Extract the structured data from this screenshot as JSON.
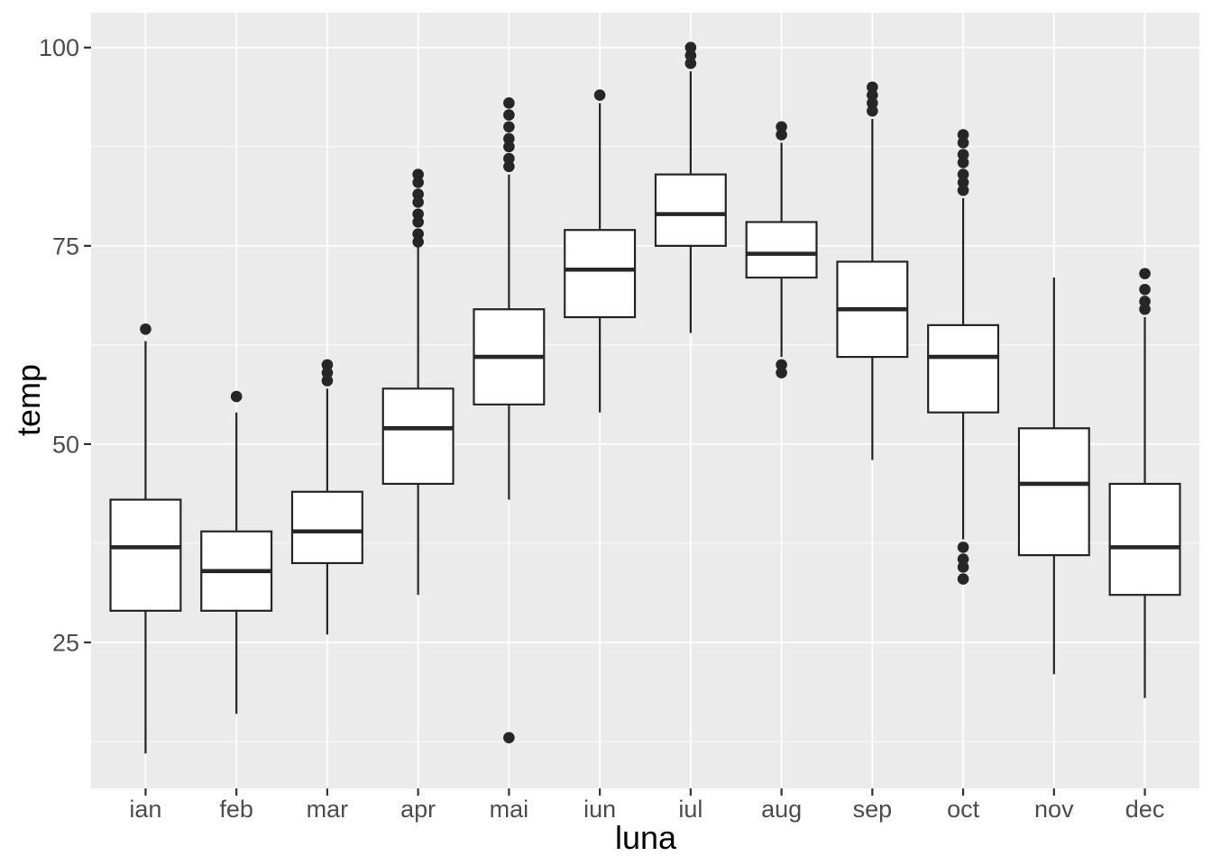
{
  "chart_data": {
    "type": "boxplot",
    "title": "",
    "xlabel": "luna",
    "ylabel": "temp",
    "x_categories": [
      "ian",
      "feb",
      "mar",
      "apr",
      "mai",
      "iun",
      "iul",
      "aug",
      "sep",
      "oct",
      "nov",
      "dec"
    ],
    "y_ticks": [
      25,
      50,
      75,
      100
    ],
    "y_minor_gridlines": [
      12.5,
      37.5,
      62.5,
      87.5
    ],
    "ylim": [
      6.6,
      104.4
    ],
    "grid": "on",
    "legend": "none",
    "boxes": [
      {
        "month": "ian",
        "whisker_low": 11,
        "q1": 29,
        "median": 37,
        "q3": 43,
        "whisker_high": 63,
        "outliers": [
          64.5
        ]
      },
      {
        "month": "feb",
        "whisker_low": 16,
        "q1": 29,
        "median": 34,
        "q3": 39,
        "whisker_high": 54,
        "outliers": [
          56
        ]
      },
      {
        "month": "mar",
        "whisker_low": 26,
        "q1": 35,
        "median": 39,
        "q3": 44,
        "whisker_high": 57,
        "outliers": [
          58,
          59,
          60
        ]
      },
      {
        "month": "apr",
        "whisker_low": 31,
        "q1": 45,
        "median": 52,
        "q3": 57,
        "whisker_high": 75,
        "outliers": [
          75.5,
          76.5,
          78,
          79,
          80.5,
          81.5,
          83,
          84
        ]
      },
      {
        "month": "mai",
        "whisker_low": 43,
        "q1": 55,
        "median": 61,
        "q3": 67,
        "whisker_high": 84,
        "outliers": [
          13,
          85,
          86,
          87.5,
          88.5,
          90,
          91.5,
          93
        ]
      },
      {
        "month": "iun",
        "whisker_low": 54,
        "q1": 66,
        "median": 72,
        "q3": 77,
        "whisker_high": 93,
        "outliers": [
          94
        ]
      },
      {
        "month": "iul",
        "whisker_low": 64,
        "q1": 75,
        "median": 79,
        "q3": 84,
        "whisker_high": 97,
        "outliers": [
          98,
          99,
          100
        ]
      },
      {
        "month": "aug",
        "whisker_low": 61,
        "q1": 71,
        "median": 74,
        "q3": 78,
        "whisker_high": 88,
        "outliers": [
          59,
          60,
          89,
          90
        ]
      },
      {
        "month": "sep",
        "whisker_low": 48,
        "q1": 61,
        "median": 67,
        "q3": 73,
        "whisker_high": 91,
        "outliers": [
          92,
          93,
          94,
          95
        ]
      },
      {
        "month": "oct",
        "whisker_low": 38,
        "q1": 54,
        "median": 61,
        "q3": 65,
        "whisker_high": 81,
        "outliers": [
          33,
          34.5,
          35.5,
          37,
          82,
          83,
          84,
          85.5,
          86.5,
          88,
          89
        ]
      },
      {
        "month": "nov",
        "whisker_low": 21,
        "q1": 36,
        "median": 45,
        "q3": 52,
        "whisker_high": 71,
        "outliers": []
      },
      {
        "month": "dec",
        "whisker_low": 18,
        "q1": 31,
        "median": 37,
        "q3": 45,
        "whisker_high": 66,
        "outliers": [
          67,
          68,
          69.5,
          71.5
        ]
      }
    ],
    "colors": {
      "panel_bg": "#EBEBEB",
      "grid_major": "#FFFFFF",
      "grid_minor": "#FFFFFF",
      "box_fill": "#FFFFFF",
      "box_stroke": "#262626",
      "outlier": "#262626",
      "tick_mark": "#333333",
      "tick_label": "#4D4D4D",
      "axis_title": "#000000"
    }
  }
}
